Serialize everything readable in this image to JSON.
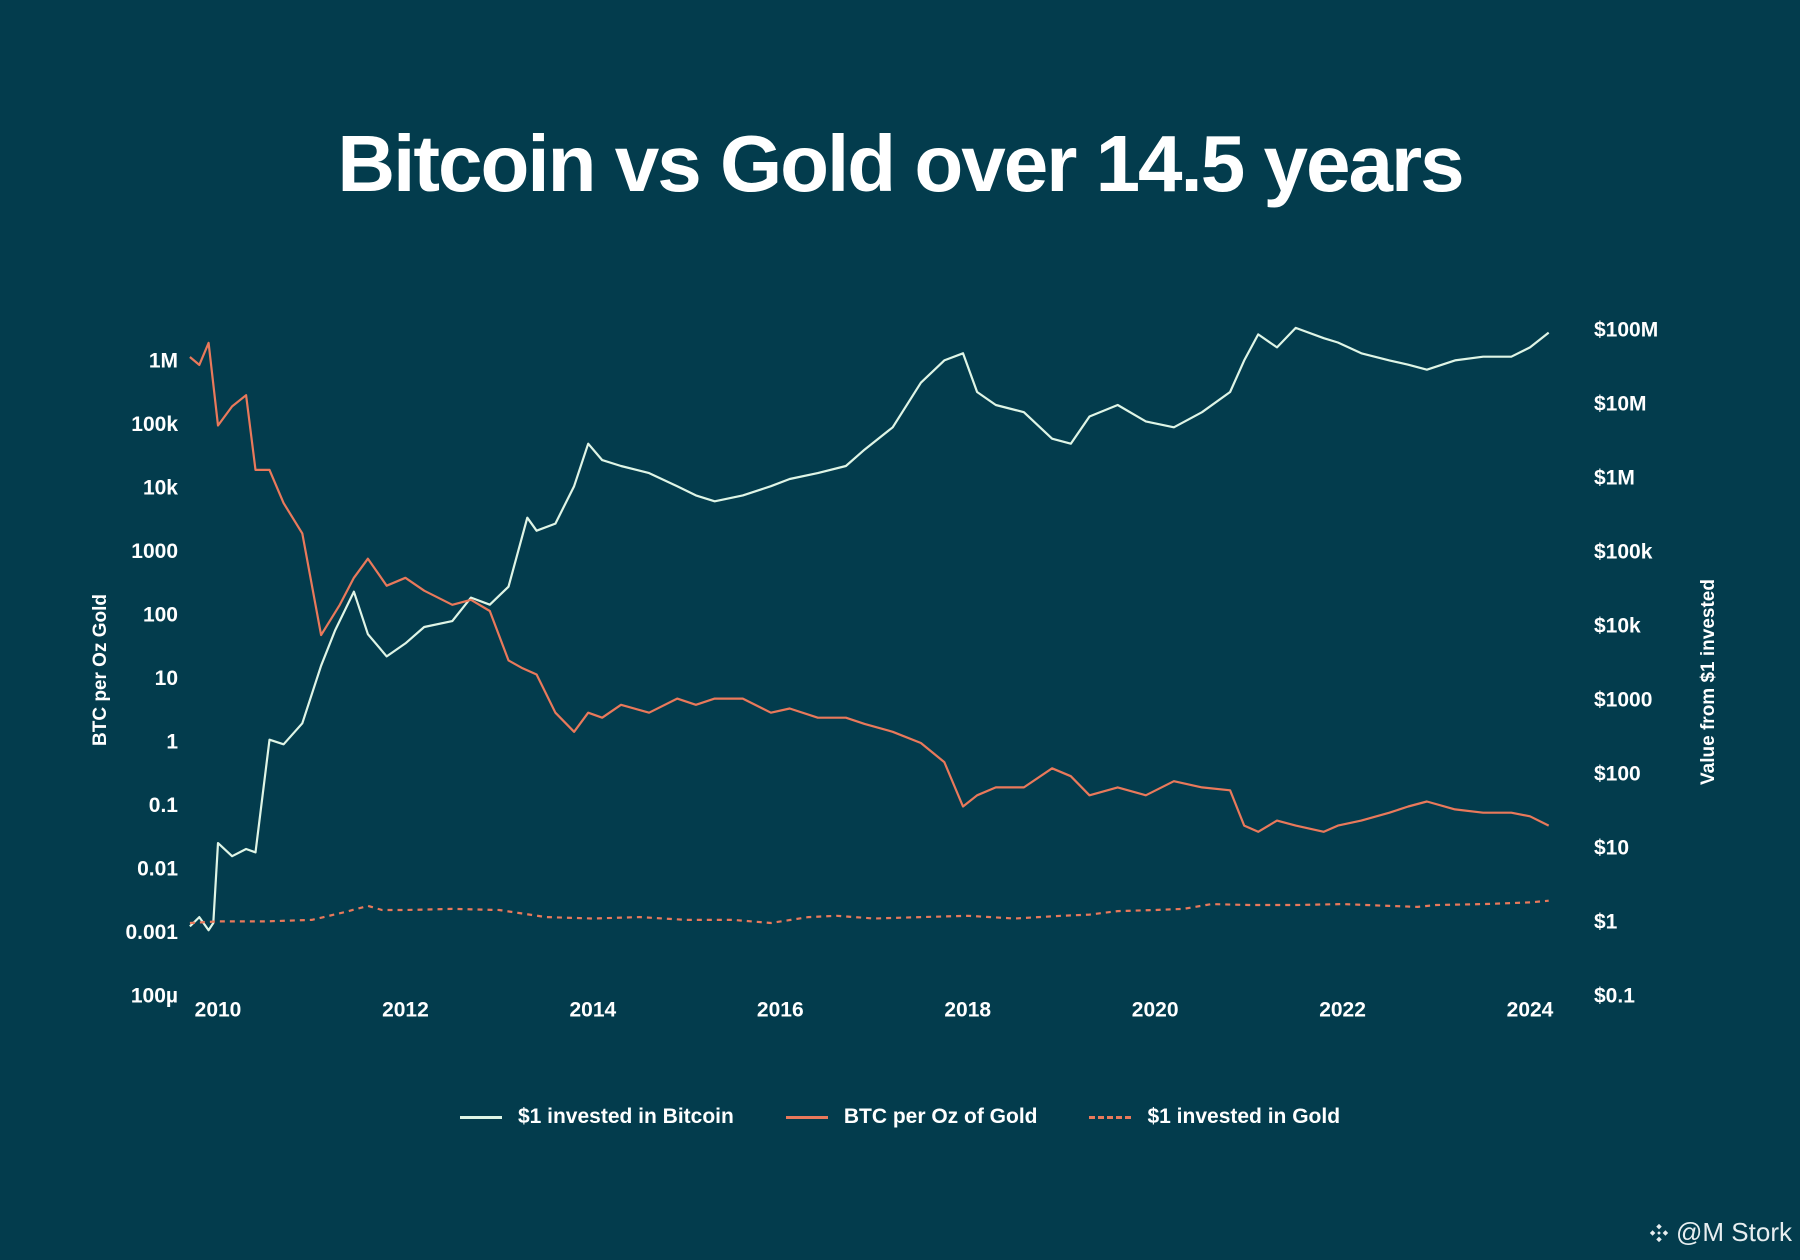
{
  "chart_data": {
    "type": "line",
    "title": "Bitcoin vs Gold over 14.5 years",
    "y_left_label": "BTC per Oz Gold",
    "y_right_label": "Value from $1 invested",
    "x_ticks": [
      2010,
      2012,
      2014,
      2016,
      2018,
      2020,
      2022,
      2024
    ],
    "x_range": [
      2009.7,
      2024.3
    ],
    "y_left_ticks": [
      {
        "label": "1M",
        "exp": 6
      },
      {
        "label": "100k",
        "exp": 5
      },
      {
        "label": "10k",
        "exp": 4
      },
      {
        "label": "1000",
        "exp": 3
      },
      {
        "label": "100",
        "exp": 2
      },
      {
        "label": "10",
        "exp": 1
      },
      {
        "label": "1",
        "exp": 0
      },
      {
        "label": "0.1",
        "exp": -1
      },
      {
        "label": "0.01",
        "exp": -2
      },
      {
        "label": "0.001",
        "exp": -3
      },
      {
        "label": "100µ",
        "exp": -4
      }
    ],
    "y_right_ticks": [
      {
        "label": "$100M",
        "exp": 8
      },
      {
        "label": "$10M",
        "exp": 7
      },
      {
        "label": "$1M",
        "exp": 6
      },
      {
        "label": "$100k",
        "exp": 5
      },
      {
        "label": "$10k",
        "exp": 4
      },
      {
        "label": "$1000",
        "exp": 3
      },
      {
        "label": "$100",
        "exp": 2
      },
      {
        "label": "$10",
        "exp": 1
      },
      {
        "label": "$1",
        "exp": 0
      },
      {
        "label": "$0.1",
        "exp": -1
      }
    ],
    "series": [
      {
        "name": "$1 invested in Bitcoin",
        "axis": "right",
        "color": "#dff5e6",
        "style": "solid",
        "x": [
          2009.7,
          2009.8,
          2009.9,
          2009.95,
          2010.0,
          2010.15,
          2010.3,
          2010.4,
          2010.55,
          2010.7,
          2010.9,
          2011.1,
          2011.25,
          2011.45,
          2011.6,
          2011.8,
          2012.0,
          2012.2,
          2012.5,
          2012.7,
          2012.9,
          2013.1,
          2013.3,
          2013.4,
          2013.6,
          2013.8,
          2013.95,
          2014.1,
          2014.3,
          2014.6,
          2014.9,
          2015.1,
          2015.3,
          2015.6,
          2015.9,
          2016.1,
          2016.4,
          2016.7,
          2016.9,
          2017.2,
          2017.5,
          2017.75,
          2017.95,
          2018.1,
          2018.3,
          2018.6,
          2018.9,
          2019.1,
          2019.3,
          2019.6,
          2019.9,
          2020.2,
          2020.5,
          2020.8,
          2020.95,
          2021.1,
          2021.3,
          2021.5,
          2021.8,
          2021.95,
          2022.2,
          2022.5,
          2022.7,
          2022.9,
          2023.2,
          2023.5,
          2023.8,
          2024.0,
          2024.2
        ],
        "y": [
          0.9,
          1.2,
          0.8,
          1.0,
          12,
          8,
          10,
          9,
          300,
          260,
          500,
          3000,
          9000,
          30000,
          8000,
          4000,
          6000,
          10000,
          12000,
          25000,
          20000,
          35000,
          300000,
          200000,
          250000,
          800000,
          3000000,
          1800000,
          1500000,
          1200000,
          800000,
          600000,
          500000,
          600000,
          800000,
          1000000,
          1200000,
          1500000,
          2500000,
          5000000,
          20000000,
          40000000,
          50000000,
          15000000,
          10000000,
          8000000,
          3500000,
          3000000,
          7000000,
          10000000,
          6000000,
          5000000,
          8000000,
          15000000,
          40000000,
          90000000,
          60000000,
          110000000,
          80000000,
          70000000,
          50000000,
          40000000,
          35000000,
          30000000,
          40000000,
          45000000,
          45000000,
          60000000,
          95000000
        ]
      },
      {
        "name": "BTC per Oz of Gold",
        "axis": "left",
        "color": "#e9795b",
        "style": "solid",
        "x": [
          2009.7,
          2009.8,
          2009.9,
          2010.0,
          2010.15,
          2010.3,
          2010.4,
          2010.55,
          2010.7,
          2010.9,
          2011.1,
          2011.3,
          2011.45,
          2011.6,
          2011.8,
          2012.0,
          2012.2,
          2012.5,
          2012.7,
          2012.9,
          2013.1,
          2013.25,
          2013.4,
          2013.6,
          2013.8,
          2013.95,
          2014.1,
          2014.3,
          2014.6,
          2014.9,
          2015.1,
          2015.3,
          2015.6,
          2015.9,
          2016.1,
          2016.4,
          2016.7,
          2016.9,
          2017.2,
          2017.5,
          2017.75,
          2017.95,
          2018.1,
          2018.3,
          2018.6,
          2018.9,
          2019.1,
          2019.3,
          2019.6,
          2019.9,
          2020.2,
          2020.5,
          2020.8,
          2020.95,
          2021.1,
          2021.3,
          2021.5,
          2021.8,
          2021.95,
          2022.2,
          2022.5,
          2022.7,
          2022.9,
          2023.2,
          2023.5,
          2023.8,
          2024.0,
          2024.2
        ],
        "y": [
          1200000,
          900000,
          2000000,
          100000,
          200000,
          300000,
          20000,
          20000,
          6000,
          2000,
          50,
          150,
          400,
          800,
          300,
          400,
          250,
          150,
          180,
          120,
          20,
          15,
          12,
          3,
          1.5,
          3,
          2.5,
          4,
          3,
          5,
          4,
          5,
          5,
          3,
          3.5,
          2.5,
          2.5,
          2,
          1.5,
          1,
          0.5,
          0.1,
          0.15,
          0.2,
          0.2,
          0.4,
          0.3,
          0.15,
          0.2,
          0.15,
          0.25,
          0.2,
          0.18,
          0.05,
          0.04,
          0.06,
          0.05,
          0.04,
          0.05,
          0.06,
          0.08,
          0.1,
          0.12,
          0.09,
          0.08,
          0.08,
          0.07,
          0.05
        ]
      },
      {
        "name": "$1 invested in Gold",
        "axis": "right",
        "color": "#e9795b",
        "style": "dashed",
        "x": [
          2009.7,
          2010.0,
          2010.5,
          2011.0,
          2011.35,
          2011.6,
          2011.75,
          2012.0,
          2012.5,
          2013.0,
          2013.5,
          2014.0,
          2014.5,
          2015.0,
          2015.5,
          2015.9,
          2016.3,
          2016.6,
          2017.0,
          2017.5,
          2018.0,
          2018.5,
          2019.0,
          2019.3,
          2019.6,
          2020.0,
          2020.3,
          2020.6,
          2021.0,
          2021.5,
          2022.0,
          2022.5,
          2022.8,
          2023.0,
          2023.5,
          2024.0,
          2024.2
        ],
        "y": [
          1.0,
          1.05,
          1.05,
          1.1,
          1.4,
          1.7,
          1.5,
          1.5,
          1.55,
          1.5,
          1.2,
          1.15,
          1.2,
          1.1,
          1.1,
          1.0,
          1.2,
          1.25,
          1.15,
          1.2,
          1.25,
          1.15,
          1.25,
          1.3,
          1.45,
          1.5,
          1.55,
          1.8,
          1.75,
          1.75,
          1.8,
          1.7,
          1.65,
          1.75,
          1.8,
          1.9,
          2.0
        ]
      }
    ],
    "legend": [
      "$1 invested in Bitcoin",
      "BTC per Oz of Gold",
      "$1 invested in Gold"
    ]
  },
  "legend_items": [
    {
      "label": "$1 invested in Bitcoin",
      "color": "#dff5e6",
      "style": "solid"
    },
    {
      "label": "BTC per Oz of Gold",
      "color": "#e9795b",
      "style": "solid"
    },
    {
      "label": "$1 invested in Gold",
      "color": "#e9795b",
      "style": "dashed"
    }
  ],
  "watermark": {
    "text": "@M Stork",
    "icon": "binance-diamond-icon"
  }
}
